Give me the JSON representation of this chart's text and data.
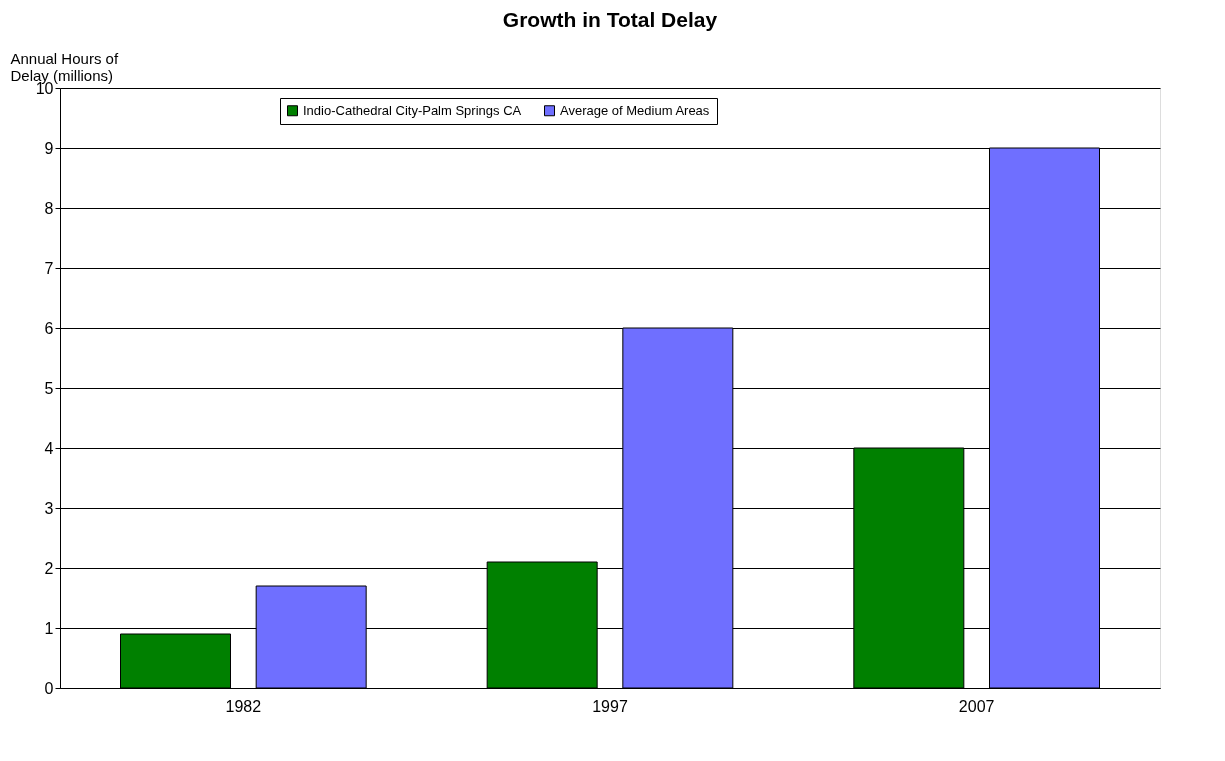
{
  "chart_data": {
    "type": "bar",
    "title": "Growth in Total Delay",
    "ylabel": "Annual Hours of\nDelay (millions)",
    "categories": [
      "1982",
      "1997",
      "2007"
    ],
    "series": [
      {
        "name": "Indio-Cathedral City-Palm Springs CA",
        "color": "#008000",
        "values": [
          0.9,
          2.1,
          4.0
        ]
      },
      {
        "name": "Average of Medium Areas",
        "color": "#6f6fff",
        "values": [
          1.7,
          6.0,
          9.0
        ]
      }
    ],
    "ylim": [
      0,
      10
    ],
    "yticks": [
      0,
      1,
      2,
      3,
      4,
      5,
      6,
      7,
      8,
      9,
      10
    ],
    "grid": "y",
    "legend": "top"
  }
}
